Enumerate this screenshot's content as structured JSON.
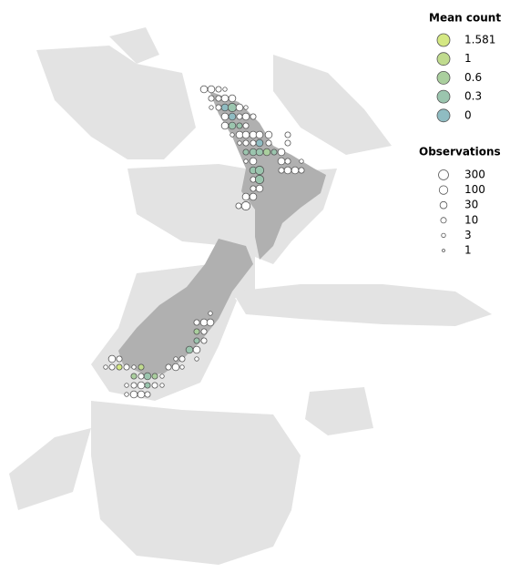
{
  "legend": {
    "mean_title": "Mean count",
    "mean_entries": [
      1.581,
      1,
      0.6,
      0.3,
      0
    ],
    "mean_colors": [
      "#d4e883",
      "#c0db8e",
      "#aacf9e",
      "#9bc5ae",
      "#8fbcc2"
    ],
    "obs_title": "Observations",
    "obs_entries": [
      300,
      100,
      30,
      10,
      3,
      1
    ]
  },
  "points": {
    "mean": [
      null,
      null,
      null,
      null,
      null,
      null,
      null,
      null,
      null,
      null,
      0,
      0.3,
      null,
      null,
      null,
      0,
      null,
      null,
      null,
      null,
      0.3,
      0.3,
      null,
      null,
      null,
      null,
      null,
      null,
      null,
      null,
      null,
      null,
      null,
      0,
      null,
      null,
      0.3,
      0.3,
      0.3,
      0.6,
      0.3,
      null,
      null,
      null,
      null,
      null,
      null,
      0.3,
      0.3,
      null,
      null,
      null,
      null,
      null,
      0.3,
      null,
      null,
      null,
      null,
      null,
      null,
      null,
      null,
      null,
      null,
      0.6,
      null,
      0.3,
      null,
      0.3,
      null,
      null,
      null,
      null,
      null,
      null,
      null,
      null,
      1.581,
      null,
      null,
      1,
      null,
      null,
      null,
      0.6,
      null,
      0.3,
      0.6,
      null,
      null,
      null,
      null,
      0.3,
      null,
      null,
      null,
      null,
      null,
      null
    ],
    "obs": [
      30,
      30,
      10,
      3,
      10,
      10,
      30,
      30,
      3,
      10,
      30,
      100,
      30,
      3,
      30,
      30,
      10,
      30,
      10,
      30,
      30,
      10,
      10,
      3,
      30,
      30,
      30,
      30,
      30,
      10,
      3,
      10,
      10,
      30,
      10,
      10,
      10,
      30,
      30,
      30,
      10,
      30,
      3,
      30,
      30,
      10,
      3,
      30,
      100,
      10,
      30,
      30,
      10,
      10,
      100,
      10,
      30,
      30,
      30,
      10,
      100,
      3,
      10,
      30,
      30,
      10,
      10,
      10,
      10,
      30,
      30,
      30,
      10,
      3,
      10,
      3,
      3,
      10,
      10,
      10,
      3,
      10,
      10,
      30,
      3,
      10,
      10,
      30,
      10,
      3,
      3,
      10,
      30,
      10,
      10,
      3,
      3,
      30,
      30,
      10
    ]
  }
}
